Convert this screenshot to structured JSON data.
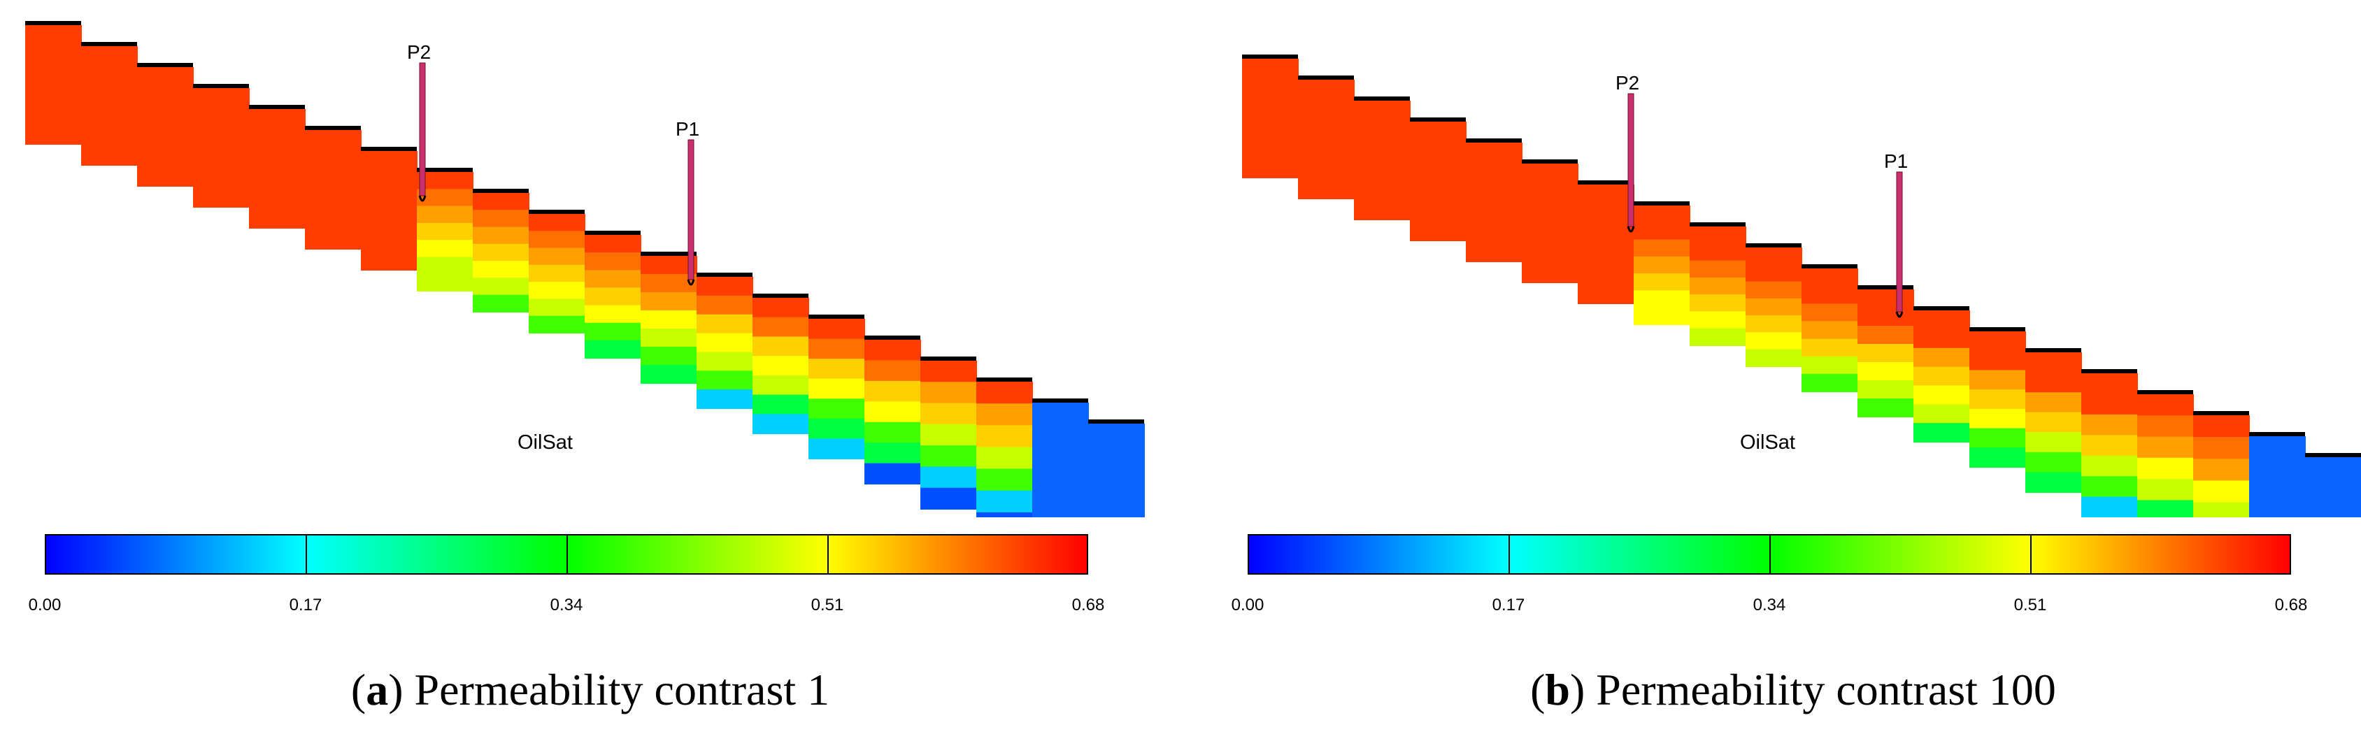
{
  "property_label": "OilSat",
  "colorbar": {
    "ticks": [
      "0.00",
      "0.17",
      "0.34",
      "0.51",
      "0.68"
    ],
    "colors": [
      "#0000ff",
      "#00ffff",
      "#00ff00",
      "#ffff00",
      "#ff0000"
    ]
  },
  "wells": [
    "P2",
    "P1"
  ],
  "panels": [
    {
      "letter": "a",
      "caption": "Permeability contrast 1",
      "open_paren": "(",
      "close_paren": ")"
    },
    {
      "letter": "b",
      "caption": "Permeability contrast 100",
      "open_paren": "(",
      "close_paren": ")"
    }
  ],
  "colors": {
    "high_sat": "#ff3d00",
    "well": "#c8306a"
  }
}
